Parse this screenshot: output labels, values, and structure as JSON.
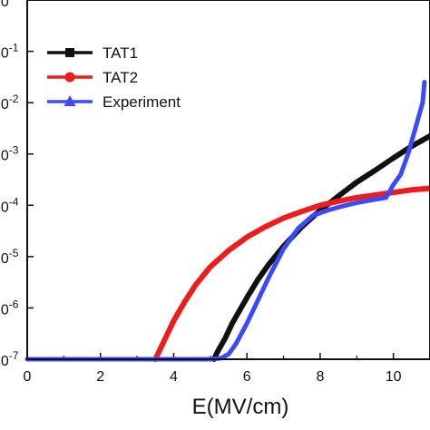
{
  "chart_data": {
    "type": "line",
    "xlabel": "E(MV/cm)",
    "ylabel": "",
    "xlim": [
      0,
      11
    ],
    "ylim": [
      -7,
      0
    ],
    "y_scale": "log",
    "x_ticks": [
      0,
      2,
      4,
      6,
      8,
      10
    ],
    "y_ticks": [
      {
        "value": 0,
        "label": "0",
        "exponent": "0"
      },
      {
        "value": -1,
        "label": "-1",
        "exponent": "-1"
      },
      {
        "value": -2,
        "label": "-2",
        "exponent": "-2"
      },
      {
        "value": -3,
        "label": "-3",
        "exponent": "-3"
      },
      {
        "value": -4,
        "label": "-4",
        "exponent": "-4"
      },
      {
        "value": -5,
        "label": "-5",
        "exponent": "-5"
      },
      {
        "value": -6,
        "label": "-6",
        "exponent": "-6"
      },
      {
        "value": -7,
        "label": "-7",
        "exponent": "-7"
      }
    ],
    "legend_position": "top-left",
    "grid": false,
    "series": [
      {
        "name": "TAT1",
        "color": "#111111",
        "marker": "square",
        "x": [
          5.1,
          5.2,
          5.4,
          5.6,
          5.8,
          6.0,
          6.3,
          6.6,
          7.0,
          7.5,
          8.0,
          8.5,
          9.0,
          9.5,
          10.0,
          10.5,
          11.0
        ],
        "y": [
          -7.0,
          -6.85,
          -6.6,
          -6.3,
          -6.05,
          -5.8,
          -5.45,
          -5.15,
          -4.8,
          -4.42,
          -4.1,
          -3.82,
          -3.55,
          -3.32,
          -3.08,
          -2.85,
          -2.65
        ]
      },
      {
        "name": "TAT2",
        "color": "#ee1c1c",
        "marker": "circle",
        "x": [
          3.5,
          3.6,
          3.8,
          4.0,
          4.3,
          4.6,
          5.0,
          5.5,
          6.0,
          6.5,
          7.0,
          7.5,
          8.0,
          8.5,
          9.0,
          9.5,
          10.0,
          10.5,
          11.0
        ],
        "y": [
          -7.0,
          -6.85,
          -6.55,
          -6.25,
          -5.88,
          -5.55,
          -5.2,
          -4.88,
          -4.62,
          -4.42,
          -4.25,
          -4.12,
          -4.0,
          -3.92,
          -3.85,
          -3.8,
          -3.75,
          -3.7,
          -3.67
        ]
      },
      {
        "name": "Experiment",
        "color": "#3a4bff",
        "marker": "triangle",
        "x": [
          0.0,
          0.5,
          1.0,
          1.5,
          2.0,
          2.5,
          3.0,
          3.5,
          4.0,
          4.5,
          5.0,
          5.3,
          5.5,
          5.7,
          6.0,
          6.3,
          6.6,
          7.0,
          7.4,
          7.8,
          8.2,
          8.6,
          9.0,
          9.4,
          9.8,
          10.0,
          10.2,
          10.4,
          10.6,
          10.8,
          10.85
        ],
        "y": [
          -7.0,
          -7.0,
          -7.0,
          -7.0,
          -7.0,
          -7.0,
          -7.0,
          -7.0,
          -7.0,
          -7.0,
          -7.0,
          -6.98,
          -6.9,
          -6.7,
          -6.3,
          -5.85,
          -5.4,
          -4.85,
          -4.45,
          -4.2,
          -4.1,
          -4.02,
          -3.95,
          -3.9,
          -3.85,
          -3.6,
          -3.4,
          -3.0,
          -2.5,
          -2.0,
          -1.6
        ]
      }
    ]
  }
}
